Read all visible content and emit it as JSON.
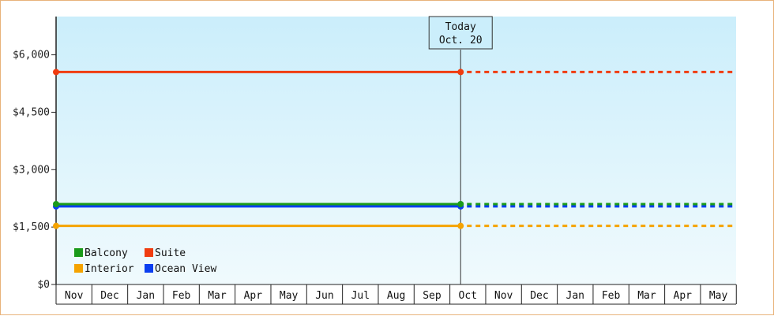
{
  "chart_data": {
    "type": "line",
    "title": "",
    "xlabel": "",
    "ylabel": "",
    "ylim": [
      0,
      7000
    ],
    "y_ticks": [
      {
        "value": 0,
        "label": "$0"
      },
      {
        "value": 1500,
        "label": "$1,500"
      },
      {
        "value": 3000,
        "label": "$3,000"
      },
      {
        "value": 4500,
        "label": "$4,500"
      },
      {
        "value": 6000,
        "label": "$6,000"
      }
    ],
    "x_months": [
      "Nov",
      "Dec",
      "Jan",
      "Feb",
      "Mar",
      "Apr",
      "May",
      "Jun",
      "Jul",
      "Aug",
      "Sep",
      "Oct",
      "Nov",
      "Dec",
      "Jan",
      "Feb",
      "Mar",
      "Apr",
      "May"
    ],
    "today_marker": {
      "line1": "Today",
      "line2": "Oct. 20",
      "month_index": 11.3
    },
    "series": [
      {
        "name": "Balcony",
        "color": "#1a9a1a",
        "value": 2100,
        "start_index": 0,
        "today_index": 11.3
      },
      {
        "name": "Suite",
        "color": "#f03c10",
        "value": 5550,
        "start_index": 0,
        "today_index": 11.3
      },
      {
        "name": "Interior",
        "color": "#f5a300",
        "value": 1530,
        "start_index": 0,
        "today_index": 11.3
      },
      {
        "name": "Ocean View",
        "color": "#0a3ef0",
        "value": 2040,
        "start_index": 0,
        "today_index": 11.3
      }
    ],
    "grid": false,
    "legend_position": "bottom-left"
  }
}
